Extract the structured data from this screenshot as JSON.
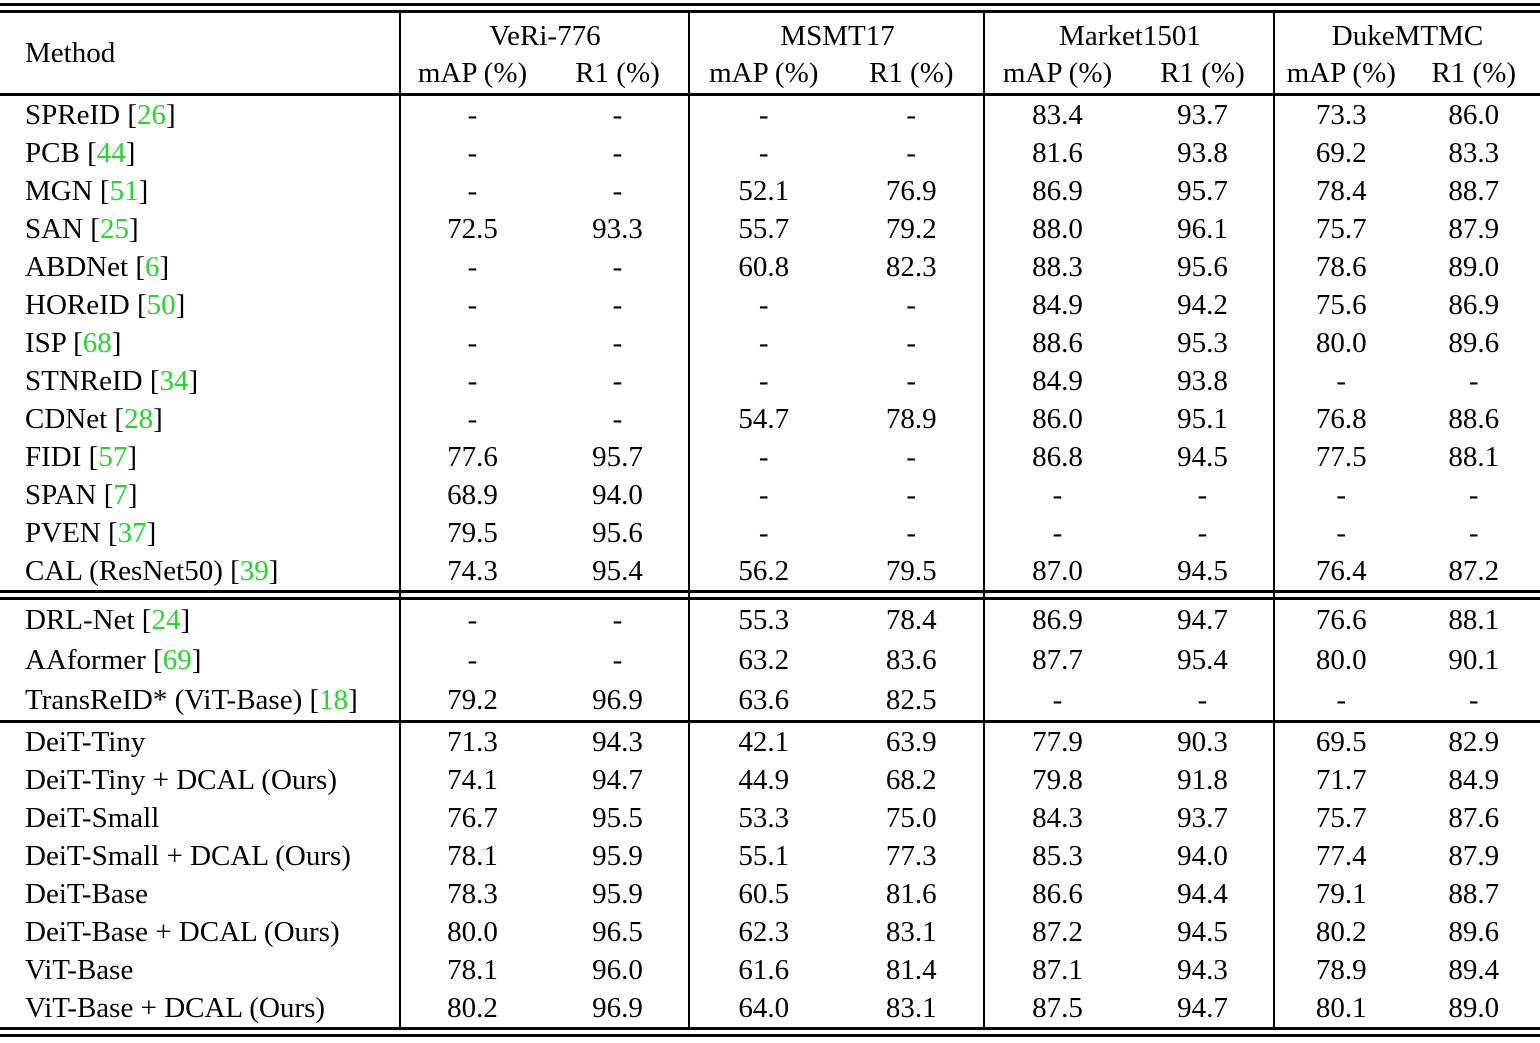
{
  "table": {
    "citation_color": "#22d82b",
    "header": {
      "method_label": "Method",
      "map_label": "mAP (%)",
      "r1_label": "R1 (%)",
      "groups": [
        {
          "name": "VeRi-776",
          "cols": [
            "mAP (%)",
            "R1 (%)"
          ]
        },
        {
          "name": "MSMT17",
          "cols": [
            "mAP (%)",
            "R1 (%)"
          ]
        },
        {
          "name": "Market1501",
          "cols": [
            "mAP (%)",
            "R1 (%)"
          ]
        },
        {
          "name": "DukeMTMC",
          "cols": [
            "mAP (%)",
            "R1 (%)"
          ]
        }
      ]
    },
    "sections": [
      {
        "rows": [
          {
            "method": "SPReID",
            "cite": "26",
            "values": [
              "-",
              "-",
              "-",
              "-",
              "83.4",
              "93.7",
              "73.3",
              "86.0"
            ]
          },
          {
            "method": "PCB",
            "cite": "44",
            "values": [
              "-",
              "-",
              "-",
              "-",
              "81.6",
              "93.8",
              "69.2",
              "83.3"
            ]
          },
          {
            "method": "MGN",
            "cite": "51",
            "values": [
              "-",
              "-",
              "52.1",
              "76.9",
              "86.9",
              "95.7",
              "78.4",
              "88.7"
            ]
          },
          {
            "method": "SAN",
            "cite": "25",
            "values": [
              "72.5",
              "93.3",
              "55.7",
              "79.2",
              "88.0",
              "96.1",
              "75.7",
              "87.9"
            ]
          },
          {
            "method": "ABDNet",
            "cite": "6",
            "values": [
              "-",
              "-",
              "60.8",
              "82.3",
              "88.3",
              "95.6",
              "78.6",
              "89.0"
            ]
          },
          {
            "method": "HOReID",
            "cite": "50",
            "values": [
              "-",
              "-",
              "-",
              "-",
              "84.9",
              "94.2",
              "75.6",
              "86.9"
            ]
          },
          {
            "method": "ISP",
            "cite": "68",
            "values": [
              "-",
              "-",
              "-",
              "-",
              "88.6",
              "95.3",
              "80.0",
              "89.6"
            ]
          },
          {
            "method": "STNReID",
            "cite": "34",
            "values": [
              "-",
              "-",
              "-",
              "-",
              "84.9",
              "93.8",
              "-",
              "-"
            ]
          },
          {
            "method": "CDNet",
            "cite": "28",
            "values": [
              "-",
              "-",
              "54.7",
              "78.9",
              "86.0",
              "95.1",
              "76.8",
              "88.6"
            ]
          },
          {
            "method": "FIDI",
            "cite": "57",
            "values": [
              "77.6",
              "95.7",
              "-",
              "-",
              "86.8",
              "94.5",
              "77.5",
              "88.1"
            ]
          },
          {
            "method": "SPAN",
            "cite": "7",
            "values": [
              "68.9",
              "94.0",
              "-",
              "-",
              "-",
              "-",
              "-",
              "-"
            ]
          },
          {
            "method": "PVEN",
            "cite": "37",
            "values": [
              "79.5",
              "95.6",
              "-",
              "-",
              "-",
              "-",
              "-",
              "-"
            ]
          },
          {
            "method": "CAL (ResNet50)",
            "cite": "39",
            "values": [
              "74.3",
              "95.4",
              "56.2",
              "79.5",
              "87.0",
              "94.5",
              "76.4",
              "87.2"
            ]
          }
        ]
      },
      {
        "rows": [
          {
            "method": "DRL-Net",
            "cite": "24",
            "values": [
              "-",
              "-",
              "55.3",
              "78.4",
              "86.9",
              "94.7",
              "76.6",
              "88.1"
            ]
          },
          {
            "method": "AAformer",
            "cite": "69",
            "values": [
              "-",
              "-",
              "63.2",
              "83.6",
              "87.7",
              "95.4",
              "80.0",
              "90.1"
            ]
          },
          {
            "method": "TransReID* (ViT-Base)",
            "cite": "18",
            "values": [
              "79.2",
              "96.9",
              "63.6",
              "82.5",
              "-",
              "-",
              "-",
              "-"
            ]
          }
        ]
      },
      {
        "rows": [
          {
            "method": "DeiT-Tiny",
            "cite": "",
            "values": [
              "71.3",
              "94.3",
              "42.1",
              "63.9",
              "77.9",
              "90.3",
              "69.5",
              "82.9"
            ]
          },
          {
            "method": "DeiT-Tiny + DCAL (Ours)",
            "cite": "",
            "values": [
              "74.1",
              "94.7",
              "44.9",
              "68.2",
              "79.8",
              "91.8",
              "71.7",
              "84.9"
            ]
          },
          {
            "method": "DeiT-Small",
            "cite": "",
            "values": [
              "76.7",
              "95.5",
              "53.3",
              "75.0",
              "84.3",
              "93.7",
              "75.7",
              "87.6"
            ]
          },
          {
            "method": "DeiT-Small + DCAL (Ours)",
            "cite": "",
            "values": [
              "78.1",
              "95.9",
              "55.1",
              "77.3",
              "85.3",
              "94.0",
              "77.4",
              "87.9"
            ]
          },
          {
            "method": "DeiT-Base",
            "cite": "",
            "values": [
              "78.3",
              "95.9",
              "60.5",
              "81.6",
              "86.6",
              "94.4",
              "79.1",
              "88.7"
            ]
          },
          {
            "method": "DeiT-Base + DCAL (Ours)",
            "cite": "",
            "values": [
              "80.0",
              "96.5",
              "62.3",
              "83.1",
              "87.2",
              "94.5",
              "80.2",
              "89.6"
            ]
          },
          {
            "method": "ViT-Base",
            "cite": "",
            "values": [
              "78.1",
              "96.0",
              "61.6",
              "81.4",
              "87.1",
              "94.3",
              "78.9",
              "89.4"
            ]
          },
          {
            "method": "ViT-Base + DCAL (Ours)",
            "cite": "",
            "values": [
              "80.2",
              "96.9",
              "64.0",
              "83.1",
              "87.5",
              "94.7",
              "80.1",
              "89.0"
            ]
          }
        ]
      }
    ]
  }
}
